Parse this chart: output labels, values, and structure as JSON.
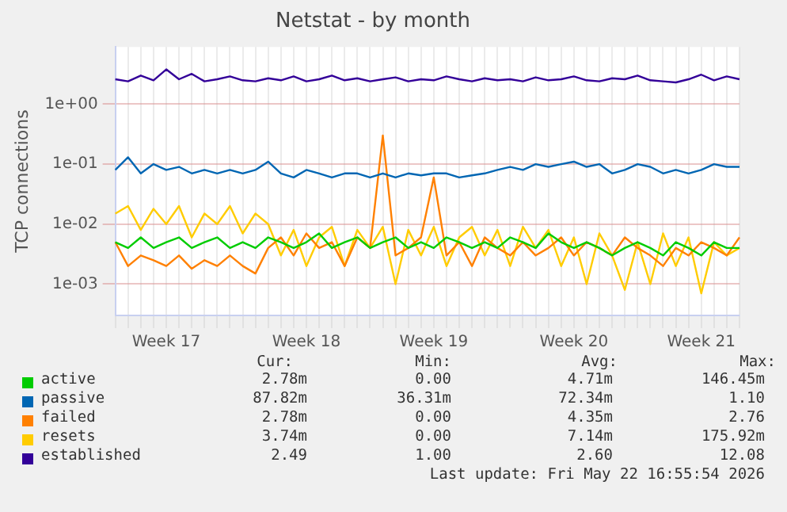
{
  "chart_data": {
    "type": "line",
    "title": "Netstat - by month",
    "ylabel": "TCP connections",
    "log": true,
    "grid": true,
    "legend": "bottom",
    "marker": "none",
    "line_style": "solid",
    "categories": [
      null,
      null,
      null,
      null,
      "Week 17",
      null,
      null,
      null,
      null,
      null,
      null,
      null,
      null,
      null,
      null,
      "Week 18",
      null,
      null,
      null,
      null,
      null,
      null,
      null,
      null,
      null,
      "Week 19",
      null,
      null,
      null,
      null,
      null,
      null,
      null,
      null,
      null,
      null,
      "Week 20",
      null,
      null,
      null,
      null,
      null,
      null,
      null,
      null,
      null,
      "Week 21",
      null,
      null,
      null
    ],
    "ylim": [
      0.0003,
      9
    ],
    "yticks": [
      {
        "value": 0.001,
        "label": "1e-03"
      },
      {
        "value": 0.01,
        "label": "1e-02"
      },
      {
        "value": 0.1,
        "label": "1e-01"
      },
      {
        "value": 1,
        "label": "1e+00"
      }
    ],
    "series": [
      {
        "name": "active",
        "color": "#00cc00",
        "values": [
          0.005,
          0.004,
          0.006,
          0.004,
          0.005,
          0.006,
          0.004,
          0.005,
          0.006,
          0.004,
          0.005,
          0.004,
          0.006,
          0.005,
          0.004,
          0.005,
          0.007,
          0.004,
          0.005,
          0.006,
          0.004,
          0.005,
          0.006,
          0.004,
          0.005,
          0.004,
          0.006,
          0.005,
          0.004,
          0.005,
          0.004,
          0.006,
          0.005,
          0.004,
          0.007,
          0.005,
          0.004,
          0.005,
          0.004,
          0.003,
          0.004,
          0.005,
          0.004,
          0.003,
          0.005,
          0.004,
          0.003,
          0.005,
          0.004,
          0.004
        ]
      },
      {
        "name": "passive",
        "color": "#0066b3",
        "values": [
          0.08,
          0.13,
          0.07,
          0.1,
          0.08,
          0.09,
          0.07,
          0.08,
          0.07,
          0.08,
          0.07,
          0.08,
          0.11,
          0.07,
          0.06,
          0.08,
          0.07,
          0.06,
          0.07,
          0.07,
          0.06,
          0.07,
          0.06,
          0.07,
          0.065,
          0.07,
          0.07,
          0.06,
          0.065,
          0.07,
          0.08,
          0.09,
          0.08,
          0.1,
          0.09,
          0.1,
          0.11,
          0.09,
          0.1,
          0.07,
          0.08,
          0.1,
          0.09,
          0.07,
          0.08,
          0.07,
          0.08,
          0.1,
          0.09,
          0.09
        ]
      },
      {
        "name": "failed",
        "color": "#ff8000",
        "values": [
          0.005,
          0.002,
          0.003,
          0.0025,
          0.002,
          0.003,
          0.0018,
          0.0025,
          0.002,
          0.003,
          0.002,
          0.0015,
          0.004,
          0.006,
          0.003,
          0.007,
          0.004,
          0.005,
          0.002,
          0.006,
          0.004,
          0.3,
          0.003,
          0.004,
          0.006,
          0.06,
          0.003,
          0.005,
          0.002,
          0.006,
          0.004,
          0.003,
          0.005,
          0.003,
          0.004,
          0.006,
          0.003,
          0.005,
          0.004,
          0.003,
          0.006,
          0.004,
          0.003,
          0.002,
          0.004,
          0.003,
          0.005,
          0.004,
          0.003,
          0.006
        ]
      },
      {
        "name": "resets",
        "color": "#ffcc00",
        "values": [
          0.015,
          0.02,
          0.008,
          0.018,
          0.01,
          0.02,
          0.006,
          0.015,
          0.01,
          0.02,
          0.007,
          0.015,
          0.01,
          0.003,
          0.008,
          0.002,
          0.006,
          0.009,
          0.002,
          0.008,
          0.004,
          0.009,
          0.001,
          0.008,
          0.003,
          0.009,
          0.002,
          0.006,
          0.009,
          0.003,
          0.008,
          0.002,
          0.009,
          0.004,
          0.008,
          0.002,
          0.006,
          0.001,
          0.007,
          0.003,
          0.0008,
          0.005,
          0.001,
          0.007,
          0.002,
          0.006,
          0.0007,
          0.005,
          0.003,
          0.004
        ]
      },
      {
        "name": "established",
        "color": "#330099",
        "values": [
          2.6,
          2.4,
          3,
          2.5,
          3.8,
          2.6,
          3.2,
          2.4,
          2.6,
          2.9,
          2.5,
          2.4,
          2.7,
          2.5,
          2.9,
          2.4,
          2.6,
          3,
          2.5,
          2.7,
          2.4,
          2.6,
          2.8,
          2.4,
          2.6,
          2.5,
          2.9,
          2.6,
          2.4,
          2.7,
          2.5,
          2.6,
          2.4,
          2.8,
          2.5,
          2.6,
          2.9,
          2.5,
          2.4,
          2.7,
          2.6,
          3,
          2.5,
          2.4,
          2.3,
          2.6,
          3.1,
          2.5,
          2.9,
          2.6
        ]
      }
    ],
    "annotations": [
      "Cur:",
      "Min:",
      "Avg:",
      "Max:",
      "2.78m",
      "0.00",
      "4.71m",
      "146.45m",
      "87.82m",
      "36.31m",
      "72.34m",
      "1.10",
      "2.78m",
      "0.00",
      "4.35m",
      "2.76",
      "3.74m",
      "0.00",
      "7.14m",
      "175.92m",
      "2.49",
      "1.00",
      "2.60",
      "12.08",
      "Last update: Fri May 22 16:55:54 2026"
    ]
  }
}
